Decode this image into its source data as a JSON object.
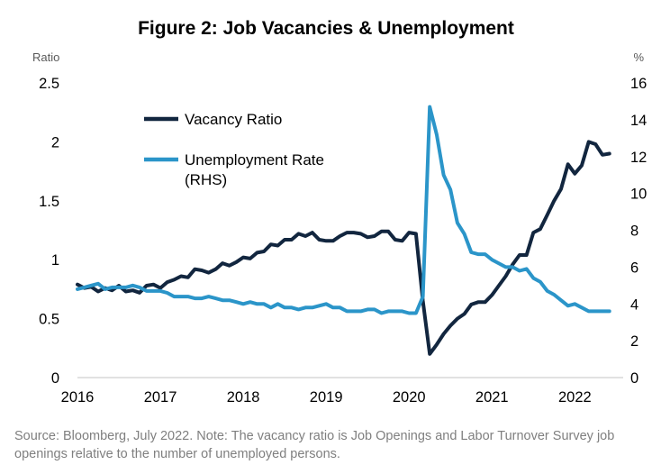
{
  "title": "Figure 2: Job Vacancies & Unemployment",
  "note": "Source: Bloomberg, July 2022. Note: The vacancy ratio is Job Openings and Labor Turnover Survey job openings relative to the number of unemployed persons.",
  "chart_data": {
    "type": "line",
    "title": "Figure 2: Job Vacancies & Unemployment",
    "y_left_label": "Ratio",
    "y_right_label": "%",
    "x_ticks": [
      "2016",
      "2017",
      "2018",
      "2019",
      "2020",
      "2021",
      "2022"
    ],
    "y_left_ticks": [
      "0",
      "0.5",
      "1",
      "1.5",
      "2",
      "2.5"
    ],
    "y_right_ticks": [
      "0",
      "2",
      "4",
      "6",
      "8",
      "10",
      "12",
      "14",
      "16"
    ],
    "x_range": [
      2016.0,
      2022.583
    ],
    "y_left_range": [
      0,
      2.5
    ],
    "y_right_range": [
      0,
      16
    ],
    "grid": false,
    "legend_position": "top-left",
    "series": [
      {
        "name": "Vacancy Ratio",
        "axis": "left",
        "color": "#12263f",
        "x": [
          2016.0,
          2016.083,
          2016.167,
          2016.25,
          2016.333,
          2016.417,
          2016.5,
          2016.583,
          2016.667,
          2016.75,
          2016.833,
          2016.917,
          2017.0,
          2017.083,
          2017.167,
          2017.25,
          2017.333,
          2017.417,
          2017.5,
          2017.583,
          2017.667,
          2017.75,
          2017.833,
          2017.917,
          2018.0,
          2018.083,
          2018.167,
          2018.25,
          2018.333,
          2018.417,
          2018.5,
          2018.583,
          2018.667,
          2018.75,
          2018.833,
          2018.917,
          2019.0,
          2019.083,
          2019.167,
          2019.25,
          2019.333,
          2019.417,
          2019.5,
          2019.583,
          2019.667,
          2019.75,
          2019.833,
          2019.917,
          2020.0,
          2020.083,
          2020.167,
          2020.25,
          2020.333,
          2020.417,
          2020.5,
          2020.583,
          2020.667,
          2020.75,
          2020.833,
          2020.917,
          2021.0,
          2021.083,
          2021.167,
          2021.25,
          2021.333,
          2021.417,
          2021.5,
          2021.583,
          2021.667,
          2021.75,
          2021.833,
          2021.917,
          2022.0,
          2022.083,
          2022.167,
          2022.25,
          2022.333,
          2022.417
        ],
        "values": [
          0.79,
          0.76,
          0.77,
          0.73,
          0.76,
          0.74,
          0.78,
          0.73,
          0.74,
          0.72,
          0.78,
          0.79,
          0.76,
          0.81,
          0.83,
          0.86,
          0.85,
          0.92,
          0.91,
          0.89,
          0.92,
          0.97,
          0.95,
          0.98,
          1.02,
          1.01,
          1.06,
          1.07,
          1.13,
          1.12,
          1.17,
          1.17,
          1.22,
          1.2,
          1.23,
          1.17,
          1.16,
          1.16,
          1.2,
          1.23,
          1.23,
          1.22,
          1.19,
          1.2,
          1.24,
          1.24,
          1.17,
          1.16,
          1.23,
          1.22,
          0.65,
          0.2,
          0.28,
          0.37,
          0.44,
          0.5,
          0.54,
          0.62,
          0.64,
          0.64,
          0.7,
          0.78,
          0.86,
          0.96,
          1.04,
          1.04,
          1.23,
          1.26,
          1.38,
          1.5,
          1.6,
          1.81,
          1.73,
          1.8,
          2.0,
          1.98,
          1.89,
          1.9
        ]
      },
      {
        "name": "Unemployment Rate (RHS)",
        "axis": "right",
        "color": "#2b95c9",
        "x": [
          2016.0,
          2016.083,
          2016.167,
          2016.25,
          2016.333,
          2016.417,
          2016.5,
          2016.583,
          2016.667,
          2016.75,
          2016.833,
          2016.917,
          2017.0,
          2017.083,
          2017.167,
          2017.25,
          2017.333,
          2017.417,
          2017.5,
          2017.583,
          2017.667,
          2017.75,
          2017.833,
          2017.917,
          2018.0,
          2018.083,
          2018.167,
          2018.25,
          2018.333,
          2018.417,
          2018.5,
          2018.583,
          2018.667,
          2018.75,
          2018.833,
          2018.917,
          2019.0,
          2019.083,
          2019.167,
          2019.25,
          2019.333,
          2019.417,
          2019.5,
          2019.583,
          2019.667,
          2019.75,
          2019.833,
          2019.917,
          2020.0,
          2020.083,
          2020.167,
          2020.25,
          2020.333,
          2020.417,
          2020.5,
          2020.583,
          2020.667,
          2020.75,
          2020.833,
          2020.917,
          2021.0,
          2021.083,
          2021.167,
          2021.25,
          2021.333,
          2021.417,
          2021.5,
          2021.583,
          2021.667,
          2021.75,
          2021.833,
          2021.917,
          2022.0,
          2022.083,
          2022.167,
          2022.25,
          2022.333,
          2022.417
        ],
        "values": [
          4.8,
          4.9,
          5.0,
          5.1,
          4.8,
          4.9,
          4.9,
          4.9,
          5.0,
          4.9,
          4.7,
          4.7,
          4.7,
          4.6,
          4.4,
          4.4,
          4.4,
          4.3,
          4.3,
          4.4,
          4.3,
          4.2,
          4.2,
          4.1,
          4.0,
          4.1,
          4.0,
          4.0,
          3.8,
          4.0,
          3.8,
          3.8,
          3.7,
          3.8,
          3.8,
          3.9,
          4.0,
          3.8,
          3.8,
          3.6,
          3.6,
          3.6,
          3.7,
          3.7,
          3.5,
          3.6,
          3.6,
          3.6,
          3.5,
          3.5,
          4.4,
          14.7,
          13.2,
          11.0,
          10.2,
          8.4,
          7.8,
          6.8,
          6.7,
          6.7,
          6.4,
          6.2,
          6.0,
          6.0,
          5.8,
          5.9,
          5.4,
          5.2,
          4.7,
          4.5,
          4.2,
          3.9,
          4.0,
          3.8,
          3.6,
          3.6,
          3.6,
          3.6
        ]
      }
    ]
  }
}
